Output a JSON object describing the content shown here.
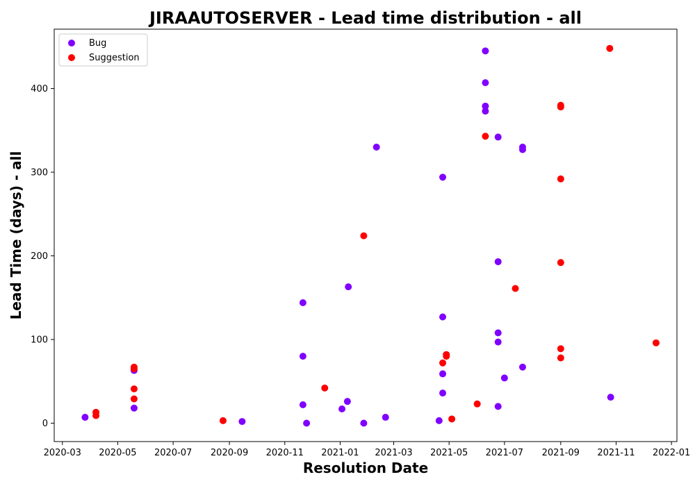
{
  "chart_data": {
    "type": "scatter",
    "title": "JIRAAUTOSERVER - Lead time distribution - all",
    "xlabel": "Resolution Date",
    "ylabel": "Lead Time (days) - all",
    "xlim": [
      "2020-02-21",
      "2022-01-07"
    ],
    "ylim": [
      -22,
      471
    ],
    "x_ticks": [
      "2020-03",
      "2020-05",
      "2020-07",
      "2020-09",
      "2020-11",
      "2021-01",
      "2021-03",
      "2021-05",
      "2021-07",
      "2021-09",
      "2021-11",
      "2022-01"
    ],
    "y_ticks": [
      0,
      100,
      200,
      300,
      400
    ],
    "grid": false,
    "legend": "upper-left",
    "series": [
      {
        "name": "Bug",
        "color": "#8000ff",
        "points": [
          {
            "x": "2020-03-26",
            "y": 7
          },
          {
            "x": "2020-05-19",
            "y": 63
          },
          {
            "x": "2020-05-19",
            "y": 18
          },
          {
            "x": "2020-09-15",
            "y": 2
          },
          {
            "x": "2020-11-21",
            "y": 144
          },
          {
            "x": "2020-11-21",
            "y": 80
          },
          {
            "x": "2020-11-21",
            "y": 22
          },
          {
            "x": "2020-11-25",
            "y": 0
          },
          {
            "x": "2021-01-03",
            "y": 17
          },
          {
            "x": "2021-01-09",
            "y": 26
          },
          {
            "x": "2021-01-10",
            "y": 163
          },
          {
            "x": "2021-01-27",
            "y": 0
          },
          {
            "x": "2021-02-10",
            "y": 330
          },
          {
            "x": "2021-02-20",
            "y": 7
          },
          {
            "x": "2021-04-20",
            "y": 3
          },
          {
            "x": "2021-04-24",
            "y": 294
          },
          {
            "x": "2021-04-24",
            "y": 127
          },
          {
            "x": "2021-04-24",
            "y": 59
          },
          {
            "x": "2021-04-24",
            "y": 36
          },
          {
            "x": "2021-06-10",
            "y": 445
          },
          {
            "x": "2021-06-10",
            "y": 407
          },
          {
            "x": "2021-06-10",
            "y": 379
          },
          {
            "x": "2021-06-10",
            "y": 373
          },
          {
            "x": "2021-06-24",
            "y": 342
          },
          {
            "x": "2021-06-24",
            "y": 193
          },
          {
            "x": "2021-06-24",
            "y": 108
          },
          {
            "x": "2021-06-24",
            "y": 97
          },
          {
            "x": "2021-06-24",
            "y": 20
          },
          {
            "x": "2021-07-01",
            "y": 54
          },
          {
            "x": "2021-07-21",
            "y": 330
          },
          {
            "x": "2021-07-21",
            "y": 327
          },
          {
            "x": "2021-07-21",
            "y": 67
          },
          {
            "x": "2021-10-26",
            "y": 31
          }
        ]
      },
      {
        "name": "Suggestion",
        "color": "#ff0000",
        "points": [
          {
            "x": "2020-04-07",
            "y": 13
          },
          {
            "x": "2020-04-07",
            "y": 9
          },
          {
            "x": "2020-05-19",
            "y": 67
          },
          {
            "x": "2020-05-19",
            "y": 65
          },
          {
            "x": "2020-05-19",
            "y": 41
          },
          {
            "x": "2020-05-19",
            "y": 29
          },
          {
            "x": "2020-08-25",
            "y": 3
          },
          {
            "x": "2020-12-15",
            "y": 42
          },
          {
            "x": "2021-01-27",
            "y": 224
          },
          {
            "x": "2021-04-24",
            "y": 72
          },
          {
            "x": "2021-04-28",
            "y": 82
          },
          {
            "x": "2021-04-28",
            "y": 80
          },
          {
            "x": "2021-05-04",
            "y": 5
          },
          {
            "x": "2021-06-01",
            "y": 23
          },
          {
            "x": "2021-06-10",
            "y": 343
          },
          {
            "x": "2021-07-13",
            "y": 161
          },
          {
            "x": "2021-09-01",
            "y": 380
          },
          {
            "x": "2021-09-01",
            "y": 378
          },
          {
            "x": "2021-09-01",
            "y": 292
          },
          {
            "x": "2021-09-01",
            "y": 192
          },
          {
            "x": "2021-09-01",
            "y": 89
          },
          {
            "x": "2021-09-01",
            "y": 78
          },
          {
            "x": "2021-10-25",
            "y": 448
          },
          {
            "x": "2021-12-15",
            "y": 96
          }
        ]
      }
    ]
  }
}
